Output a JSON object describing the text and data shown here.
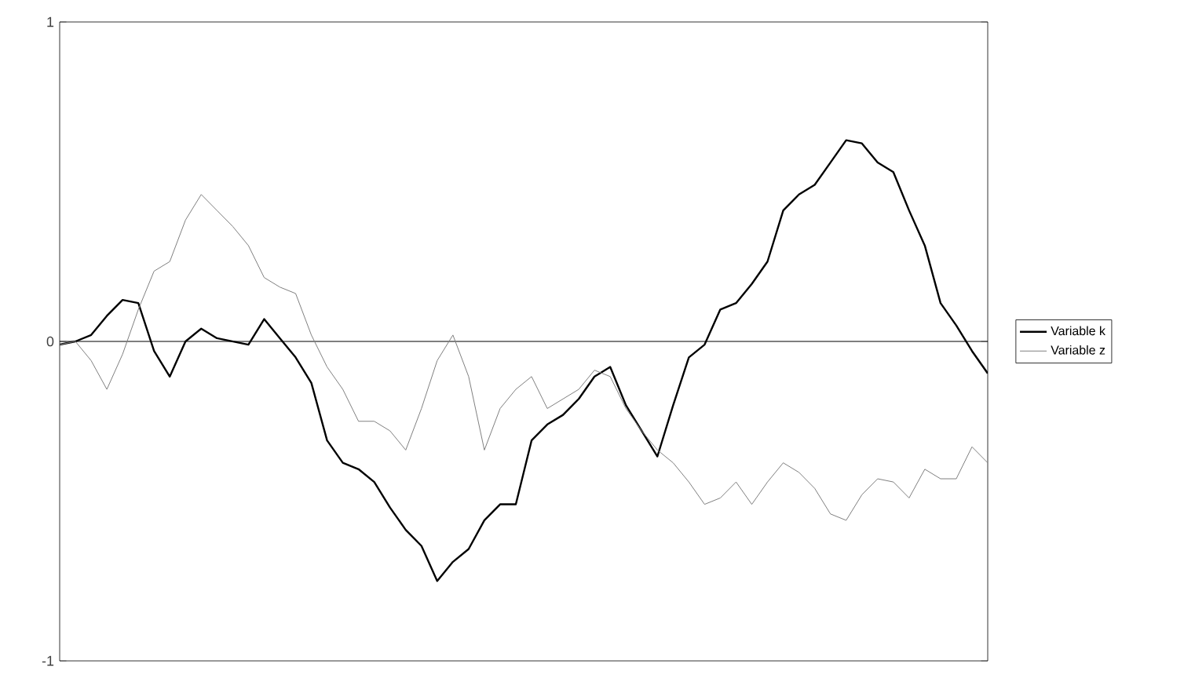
{
  "chart_data": {
    "type": "line",
    "categories": [
      null,
      null,
      null,
      null,
      null,
      null,
      null,
      null,
      null,
      null,
      null,
      null,
      null,
      null,
      null,
      null,
      null,
      null,
      null,
      null,
      null,
      null,
      null,
      null,
      null,
      null,
      null,
      null,
      null,
      null,
      null,
      null,
      null,
      null,
      null,
      null,
      null,
      null,
      null,
      null,
      null,
      null,
      null,
      null,
      null,
      null,
      null,
      null,
      null,
      null,
      null,
      null,
      null,
      null,
      null,
      null,
      null,
      null,
      null,
      null
    ],
    "series": [
      {
        "name": "Variable k",
        "color": "#000000",
        "values": [
          -0.01,
          0.0,
          0.02,
          0.08,
          0.13,
          0.12,
          -0.03,
          -0.11,
          0.0,
          0.04,
          0.01,
          0.0,
          -0.01,
          0.07,
          0.01,
          -0.05,
          -0.13,
          -0.31,
          -0.38,
          -0.4,
          -0.44,
          -0.52,
          -0.59,
          -0.64,
          -0.75,
          -0.69,
          -0.65,
          -0.56,
          -0.51,
          -0.51,
          -0.31,
          -0.26,
          -0.23,
          -0.18,
          -0.11,
          -0.08,
          -0.2,
          -0.28,
          -0.36,
          -0.2,
          -0.05,
          -0.01,
          0.1,
          0.12,
          0.18,
          0.25,
          0.41,
          0.46,
          0.49,
          0.56,
          0.63,
          0.62,
          0.56,
          0.53,
          0.41,
          0.3,
          0.12,
          0.05,
          -0.03,
          -0.1
        ]
      },
      {
        "name": "Variable z",
        "color": "#808080",
        "values": [
          -0.01,
          0.0,
          -0.06,
          -0.15,
          -0.04,
          0.1,
          0.22,
          0.25,
          0.38,
          0.46,
          0.41,
          0.36,
          0.3,
          0.2,
          0.17,
          0.15,
          0.02,
          -0.08,
          -0.15,
          -0.25,
          -0.25,
          -0.28,
          -0.34,
          -0.21,
          -0.06,
          0.02,
          -0.11,
          -0.34,
          -0.21,
          -0.15,
          -0.11,
          -0.21,
          -0.18,
          -0.15,
          -0.09,
          -0.11,
          -0.21,
          -0.28,
          -0.34,
          -0.38,
          -0.44,
          -0.51,
          -0.49,
          -0.44,
          -0.51,
          -0.44,
          -0.38,
          -0.41,
          -0.46,
          -0.54,
          -0.56,
          -0.48,
          -0.43,
          -0.44,
          -0.49,
          -0.4,
          -0.43,
          -0.43,
          -0.33,
          -0.38
        ]
      }
    ],
    "ylim": [
      -1,
      1
    ],
    "yticks": [
      -1,
      0,
      1
    ],
    "ref_lines": [
      {
        "axis": "y",
        "value": 0
      }
    ],
    "tick_labels": "y",
    "legend": "right",
    "grid": false,
    "marker": "none",
    "line_style": "solid"
  }
}
